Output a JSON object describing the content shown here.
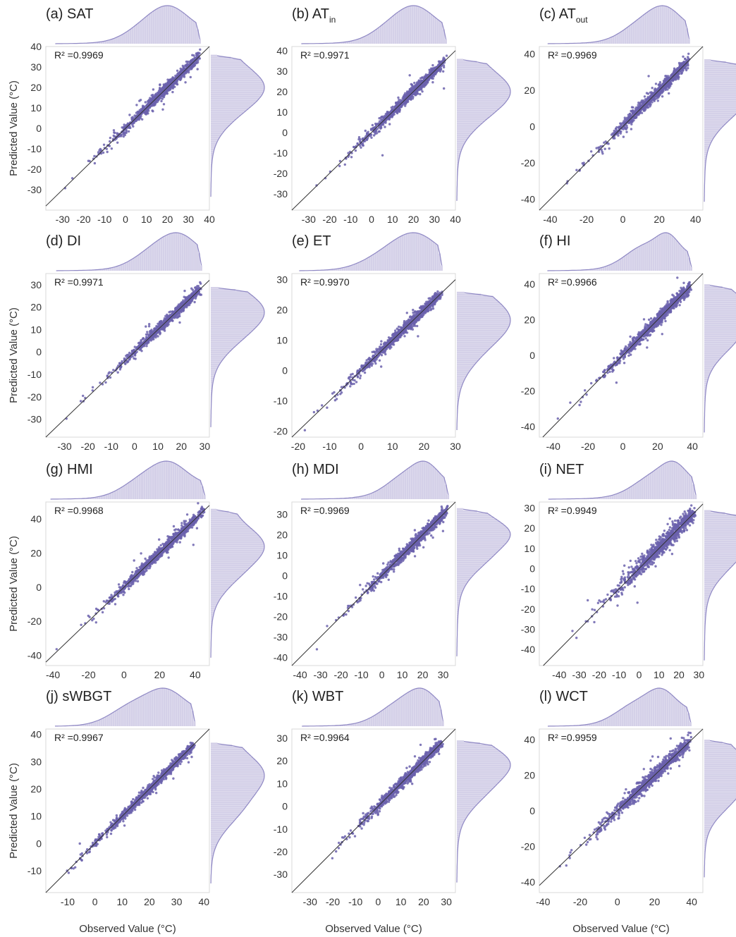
{
  "figure": {
    "ylabel": "Predicted Value (°C)",
    "xlabel": "Observed Value (°C)",
    "colors": {
      "points": "#6b62ad",
      "hist_fill": "#cfcbe6",
      "hist_line": "#8f88c4",
      "frame": "#d9d9d9",
      "diagonal": "#333333"
    }
  },
  "chart_data": [
    {
      "type": "scatter",
      "title": "(a) SAT",
      "title_main": "(a) SAT",
      "title_sub": "",
      "r2_label": "R² =0.9969",
      "xlim": [
        -38,
        40
      ],
      "ylim": [
        -40,
        40
      ],
      "x_ticks": [
        "-30",
        "-20",
        "-10",
        "0",
        "10",
        "20",
        "30",
        "40"
      ],
      "y_ticks": [
        "40",
        "30",
        "20",
        "10",
        "0",
        "-10",
        "-20",
        "-30"
      ],
      "data_range": [
        -34,
        36
      ],
      "peaks": [
        [
          12,
          10
        ],
        [
          22,
          8
        ]
      ],
      "spread": 1.4,
      "outlier_rate": 0.02
    },
    {
      "type": "scatter",
      "title": "(b) ATin",
      "title_main": "(b) AT",
      "title_sub": "in",
      "r2_label": "R² =0.9971",
      "xlim": [
        -38,
        40
      ],
      "ylim": [
        -38,
        42
      ],
      "x_ticks": [
        "-30",
        "-20",
        "-10",
        "0",
        "10",
        "20",
        "30",
        "40"
      ],
      "y_ticks": [
        "40",
        "30",
        "20",
        "10",
        "0",
        "-10",
        "-20",
        "-30"
      ],
      "data_range": [
        -34,
        36
      ],
      "peaks": [
        [
          12,
          10
        ],
        [
          22,
          8
        ]
      ],
      "spread": 1.4,
      "outlier_rate": 0.02
    },
    {
      "type": "scatter",
      "title": "(c) ATout",
      "title_main": "(c) AT",
      "title_sub": "out",
      "r2_label": "R² =0.9969",
      "xlim": [
        -46,
        44
      ],
      "ylim": [
        -46,
        44
      ],
      "x_ticks": [
        "-40",
        "-20",
        "0",
        "20",
        "40"
      ],
      "y_ticks": [
        "40",
        "20",
        "0",
        "-20",
        "-40"
      ],
      "data_range": [
        -42,
        37
      ],
      "peaks": [
        [
          12,
          11
        ],
        [
          24,
          8
        ]
      ],
      "spread": 1.6,
      "outlier_rate": 0.02
    },
    {
      "type": "scatter",
      "title": "(d) DI",
      "title_main": "(d) DI",
      "title_sub": "",
      "r2_label": "R² =0.9971",
      "xlim": [
        -38,
        32
      ],
      "ylim": [
        -38,
        35
      ],
      "x_ticks": [
        "-30",
        "-20",
        "-10",
        "0",
        "10",
        "20",
        "30"
      ],
      "y_ticks": [
        "30",
        "20",
        "10",
        "0",
        "-10",
        "-20",
        "-30"
      ],
      "data_range": [
        -34,
        29
      ],
      "peaks": [
        [
          10,
          9
        ],
        [
          20,
          7
        ]
      ],
      "spread": 1.2,
      "outlier_rate": 0.02
    },
    {
      "type": "scatter",
      "title": "(e) ET",
      "title_main": "(e) ET",
      "title_sub": "",
      "r2_label": "R² =0.9970",
      "xlim": [
        -22,
        30
      ],
      "ylim": [
        -22,
        32
      ],
      "x_ticks": [
        "-20",
        "-10",
        "0",
        "10",
        "20",
        "30"
      ],
      "y_ticks": [
        "30",
        "20",
        "10",
        "0",
        "-10",
        "-20"
      ],
      "data_range": [
        -20,
        26
      ],
      "peaks": [
        [
          10,
          8
        ],
        [
          18,
          6
        ]
      ],
      "spread": 0.9,
      "outlier_rate": 0.02
    },
    {
      "type": "scatter",
      "title": "(f) HI",
      "title_main": "(f) HI",
      "title_sub": "",
      "r2_label": "R² =0.9966",
      "xlim": [
        -48,
        46
      ],
      "ylim": [
        -46,
        46
      ],
      "x_ticks": [
        "-40",
        "-20",
        "0",
        "20",
        "40"
      ],
      "y_ticks": [
        "40",
        "20",
        "0",
        "-20",
        "-40"
      ],
      "data_range": [
        -44,
        40
      ],
      "peaks": [
        [
          12,
          11
        ],
        [
          26,
          6
        ]
      ],
      "spread": 1.7,
      "outlier_rate": 0.02
    },
    {
      "type": "scatter",
      "title": "(g) HMI",
      "title_main": "(g) HMI",
      "title_sub": "",
      "r2_label": "R² =0.9968",
      "xlim": [
        -44,
        48
      ],
      "ylim": [
        -46,
        50
      ],
      "x_ticks": [
        "-40",
        "-20",
        "0",
        "20",
        "40"
      ],
      "y_ticks": [
        "40",
        "20",
        "0",
        "-20",
        "-40"
      ],
      "data_range": [
        -42,
        46
      ],
      "peaks": [
        [
          12,
          12
        ],
        [
          26,
          9
        ]
      ],
      "spread": 1.7,
      "outlier_rate": 0.02
    },
    {
      "type": "scatter",
      "title": "(h) MDI",
      "title_main": "(h) MDI",
      "title_sub": "",
      "r2_label": "R² =0.9969",
      "xlim": [
        -44,
        36
      ],
      "ylim": [
        -44,
        36
      ],
      "x_ticks": [
        "-40",
        "-30",
        "-20",
        "-10",
        "0",
        "10",
        "20",
        "30"
      ],
      "y_ticks": [
        "30",
        "20",
        "10",
        "0",
        "-10",
        "-20",
        "-30",
        "-40"
      ],
      "data_range": [
        -40,
        33
      ],
      "peaks": [
        [
          12,
          9
        ],
        [
          22,
          6
        ]
      ],
      "spread": 1.4,
      "outlier_rate": 0.02
    },
    {
      "type": "scatter",
      "title": "(i) NET",
      "title_main": "(i) NET",
      "title_sub": "",
      "r2_label": "R² =0.9949",
      "xlim": [
        -50,
        32
      ],
      "ylim": [
        -48,
        33
      ],
      "x_ticks": [
        "-40",
        "-30",
        "-20",
        "-10",
        "0",
        "10",
        "20",
        "30"
      ],
      "y_ticks": [
        "30",
        "20",
        "10",
        "0",
        "-10",
        "-20",
        "-30",
        "-40"
      ],
      "data_range": [
        -46,
        29
      ],
      "peaks": [
        [
          8,
          10
        ],
        [
          18,
          6
        ]
      ],
      "spread": 2.2,
      "outlier_rate": 0.03
    },
    {
      "type": "scatter",
      "title": "(j) sWBGT",
      "title_main": "(j) sWBGT",
      "title_sub": "",
      "r2_label": "R² =0.9967",
      "xlim": [
        -18,
        42
      ],
      "ylim": [
        -18,
        42
      ],
      "x_ticks": [
        "-10",
        "0",
        "10",
        "20",
        "30",
        "40"
      ],
      "y_ticks": [
        "40",
        "30",
        "20",
        "10",
        "0",
        "-10"
      ],
      "data_range": [
        -15,
        37
      ],
      "peaks": [
        [
          14,
          8
        ],
        [
          26,
          6
        ]
      ],
      "spread": 0.9,
      "outlier_rate": 0.02
    },
    {
      "type": "scatter",
      "title": "(k) WBT",
      "title_main": "(k) WBT",
      "title_sub": "",
      "r2_label": "R² =0.9964",
      "xlim": [
        -38,
        34
      ],
      "ylim": [
        -38,
        34
      ],
      "x_ticks": [
        "-30",
        "-20",
        "-10",
        "0",
        "10",
        "20",
        "30"
      ],
      "y_ticks": [
        "30",
        "20",
        "10",
        "0",
        "-10",
        "-20",
        "-30"
      ],
      "data_range": [
        -34,
        29
      ],
      "peaks": [
        [
          10,
          9
        ],
        [
          20,
          6
        ]
      ],
      "spread": 1.2,
      "outlier_rate": 0.02
    },
    {
      "type": "scatter",
      "title": "(l) WCT",
      "title_main": "(l) WCT",
      "title_sub": "",
      "r2_label": "R² =0.9959",
      "xlim": [
        -42,
        46
      ],
      "ylim": [
        -46,
        46
      ],
      "x_ticks": [
        "-40",
        "-20",
        "0",
        "20",
        "40"
      ],
      "y_ticks": [
        "40",
        "20",
        "0",
        "-20",
        "-40"
      ],
      "data_range": [
        -38,
        40
      ],
      "peaks": [
        [
          10,
          11
        ],
        [
          24,
          7
        ]
      ],
      "spread": 2.0,
      "outlier_rate": 0.03
    }
  ]
}
